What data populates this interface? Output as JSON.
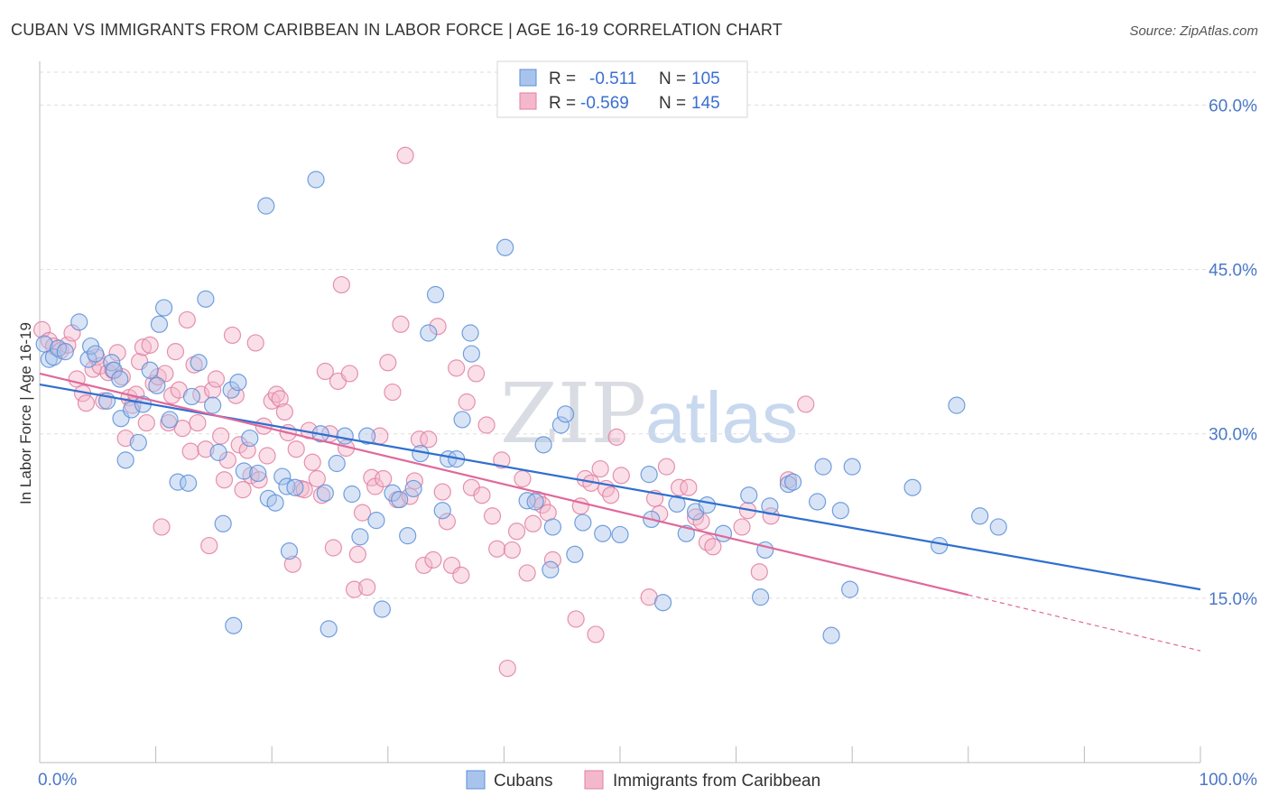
{
  "title": "CUBAN VS IMMIGRANTS FROM CARIBBEAN IN LABOR FORCE | AGE 16-19 CORRELATION CHART",
  "source": "Source: ZipAtlas.com",
  "watermark": {
    "zip": "ZIP",
    "atlas": "atlas"
  },
  "colors": {
    "blue_fill": "#a9c4ec",
    "blue_stroke": "#5b8fd8",
    "blue_line": "#2f6fd0",
    "pink_fill": "#f4b8cc",
    "pink_stroke": "#e07fa0",
    "pink_line": "#e0689a",
    "grid": "#dddddd",
    "tick_text": "#4a78c8"
  },
  "legend": {
    "rows": [
      {
        "r_label": "R =",
        "r_value": "-0.511",
        "n_label": "N =",
        "n_value": "105"
      },
      {
        "r_label": "R =",
        "r_value": "-0.569",
        "n_label": "N =",
        "n_value": "145"
      }
    ]
  },
  "bottom_legend": [
    "Cubans",
    "Immigrants from Caribbean"
  ],
  "chart_data": {
    "type": "scatter",
    "ylabel": "In Labor Force | Age 16-19",
    "xlim": [
      0,
      100
    ],
    "ylim": [
      0,
      63
    ],
    "x_tick_labels": [
      "0.0%",
      "100.0%"
    ],
    "y_ticks": [
      15,
      30,
      45,
      60
    ],
    "y_tick_labels": [
      "15.0%",
      "30.0%",
      "45.0%",
      "60.0%"
    ],
    "grid": true,
    "legend_position": "top-center",
    "series": [
      {
        "name": "Cubans",
        "trend": {
          "x": [
            0,
            100
          ],
          "y": [
            34.5,
            15.8
          ]
        },
        "points": [
          [
            0.4,
            38.2
          ],
          [
            0.8,
            36.8
          ],
          [
            1.2,
            37.0
          ],
          [
            1.6,
            37.8
          ],
          [
            2.2,
            37.5
          ],
          [
            3.4,
            40.2
          ],
          [
            4.2,
            36.8
          ],
          [
            4.4,
            38.0
          ],
          [
            4.8,
            37.3
          ],
          [
            6.2,
            36.5
          ],
          [
            5.8,
            33.0
          ],
          [
            6.4,
            35.8
          ],
          [
            6.9,
            35.0
          ],
          [
            7.0,
            31.4
          ],
          [
            7.4,
            27.6
          ],
          [
            7.9,
            32.2
          ],
          [
            8.5,
            29.2
          ],
          [
            8.9,
            32.7
          ],
          [
            9.5,
            35.8
          ],
          [
            10.1,
            34.4
          ],
          [
            10.3,
            40.0
          ],
          [
            10.7,
            41.5
          ],
          [
            11.2,
            31.3
          ],
          [
            11.9,
            25.6
          ],
          [
            12.8,
            25.5
          ],
          [
            13.1,
            33.4
          ],
          [
            13.7,
            36.5
          ],
          [
            14.3,
            42.3
          ],
          [
            14.9,
            32.6
          ],
          [
            15.4,
            28.3
          ],
          [
            15.8,
            21.8
          ],
          [
            16.5,
            34.0
          ],
          [
            16.7,
            12.5
          ],
          [
            17.1,
            34.7
          ],
          [
            17.6,
            26.6
          ],
          [
            18.1,
            29.6
          ],
          [
            18.8,
            26.4
          ],
          [
            19.5,
            50.8
          ],
          [
            19.7,
            24.1
          ],
          [
            20.3,
            23.7
          ],
          [
            20.9,
            26.1
          ],
          [
            21.3,
            25.2
          ],
          [
            21.5,
            19.3
          ],
          [
            22.0,
            25.1
          ],
          [
            23.8,
            53.2
          ],
          [
            24.2,
            30.0
          ],
          [
            24.6,
            24.6
          ],
          [
            24.9,
            12.2
          ],
          [
            25.6,
            27.3
          ],
          [
            26.3,
            29.8
          ],
          [
            26.9,
            24.5
          ],
          [
            27.6,
            20.6
          ],
          [
            28.2,
            29.8
          ],
          [
            29.0,
            22.1
          ],
          [
            29.5,
            14.0
          ],
          [
            30.4,
            24.6
          ],
          [
            31.0,
            24.0
          ],
          [
            31.7,
            20.7
          ],
          [
            32.2,
            25.0
          ],
          [
            32.8,
            28.2
          ],
          [
            33.5,
            39.2
          ],
          [
            34.1,
            42.7
          ],
          [
            34.7,
            23.0
          ],
          [
            35.2,
            27.7
          ],
          [
            35.9,
            27.7
          ],
          [
            36.4,
            31.3
          ],
          [
            37.1,
            39.2
          ],
          [
            37.2,
            37.3
          ],
          [
            40.1,
            47.0
          ],
          [
            42.0,
            23.9
          ],
          [
            42.7,
            23.8
          ],
          [
            43.4,
            29.0
          ],
          [
            44.0,
            17.6
          ],
          [
            44.2,
            21.5
          ],
          [
            44.9,
            30.8
          ],
          [
            45.3,
            31.8
          ],
          [
            46.1,
            19.0
          ],
          [
            46.8,
            21.9
          ],
          [
            48.5,
            20.9
          ],
          [
            50.0,
            20.8
          ],
          [
            52.5,
            26.3
          ],
          [
            52.7,
            22.2
          ],
          [
            53.7,
            14.6
          ],
          [
            54.9,
            23.6
          ],
          [
            55.7,
            20.9
          ],
          [
            56.5,
            22.9
          ],
          [
            57.5,
            23.5
          ],
          [
            58.9,
            20.9
          ],
          [
            61.1,
            24.4
          ],
          [
            62.1,
            15.1
          ],
          [
            62.5,
            19.4
          ],
          [
            62.9,
            23.4
          ],
          [
            64.5,
            25.4
          ],
          [
            64.9,
            25.6
          ],
          [
            67.0,
            23.8
          ],
          [
            67.5,
            27.0
          ],
          [
            68.2,
            11.6
          ],
          [
            69.0,
            23.0
          ],
          [
            69.8,
            15.8
          ],
          [
            70.0,
            27.0
          ],
          [
            75.2,
            25.1
          ],
          [
            79.0,
            32.6
          ],
          [
            81.0,
            22.5
          ],
          [
            82.6,
            21.5
          ],
          [
            77.5,
            19.8
          ]
        ]
      },
      {
        "name": "Immigrants from Caribbean",
        "trend": {
          "x": [
            0,
            80
          ],
          "y": [
            35.5,
            15.3
          ]
        },
        "dashed_extension": {
          "x": [
            80,
            100
          ],
          "y": [
            15.3,
            10.2
          ]
        },
        "points": [
          [
            0.2,
            39.5
          ],
          [
            0.8,
            38.5
          ],
          [
            1.2,
            38.0
          ],
          [
            1.8,
            37.6
          ],
          [
            2.4,
            38.1
          ],
          [
            2.8,
            39.2
          ],
          [
            3.2,
            35.0
          ],
          [
            3.7,
            33.7
          ],
          [
            4.0,
            32.8
          ],
          [
            4.6,
            35.9
          ],
          [
            4.9,
            37.0
          ],
          [
            5.2,
            36.2
          ],
          [
            5.5,
            33.0
          ],
          [
            5.9,
            35.6
          ],
          [
            6.3,
            35.8
          ],
          [
            6.7,
            37.4
          ],
          [
            7.1,
            35.2
          ],
          [
            7.4,
            29.6
          ],
          [
            7.7,
            33.3
          ],
          [
            8.0,
            32.6
          ],
          [
            8.3,
            33.6
          ],
          [
            8.6,
            36.6
          ],
          [
            8.9,
            37.9
          ],
          [
            9.2,
            31.0
          ],
          [
            9.5,
            38.1
          ],
          [
            9.8,
            34.6
          ],
          [
            10.2,
            35.2
          ],
          [
            10.5,
            21.5
          ],
          [
            10.8,
            35.5
          ],
          [
            11.1,
            31.0
          ],
          [
            11.4,
            33.5
          ],
          [
            11.7,
            37.5
          ],
          [
            12.0,
            34.0
          ],
          [
            12.3,
            30.5
          ],
          [
            12.7,
            40.4
          ],
          [
            13.0,
            28.4
          ],
          [
            13.3,
            36.3
          ],
          [
            13.6,
            31.0
          ],
          [
            13.9,
            33.6
          ],
          [
            14.3,
            28.6
          ],
          [
            14.6,
            19.8
          ],
          [
            14.9,
            34.0
          ],
          [
            15.2,
            35.0
          ],
          [
            15.6,
            29.8
          ],
          [
            15.9,
            25.8
          ],
          [
            16.2,
            27.6
          ],
          [
            16.6,
            39.0
          ],
          [
            16.9,
            33.5
          ],
          [
            17.2,
            29.0
          ],
          [
            17.5,
            24.9
          ],
          [
            17.9,
            28.5
          ],
          [
            18.2,
            26.2
          ],
          [
            18.6,
            38.3
          ],
          [
            18.9,
            25.8
          ],
          [
            19.3,
            30.7
          ],
          [
            19.6,
            28.0
          ],
          [
            20.0,
            33.0
          ],
          [
            20.4,
            33.6
          ],
          [
            20.7,
            33.2
          ],
          [
            21.1,
            32.0
          ],
          [
            21.4,
            30.1
          ],
          [
            21.8,
            18.1
          ],
          [
            22.1,
            28.6
          ],
          [
            22.5,
            25.0
          ],
          [
            22.8,
            24.9
          ],
          [
            23.2,
            30.3
          ],
          [
            23.5,
            27.4
          ],
          [
            23.9,
            25.9
          ],
          [
            24.3,
            24.4
          ],
          [
            24.6,
            35.7
          ],
          [
            25.0,
            30.0
          ],
          [
            25.3,
            19.6
          ],
          [
            25.7,
            34.8
          ],
          [
            26.0,
            43.6
          ],
          [
            26.4,
            28.7
          ],
          [
            26.7,
            35.5
          ],
          [
            27.1,
            15.8
          ],
          [
            27.4,
            19.0
          ],
          [
            27.8,
            22.8
          ],
          [
            28.2,
            16.0
          ],
          [
            28.6,
            26.0
          ],
          [
            28.9,
            25.2
          ],
          [
            29.3,
            29.8
          ],
          [
            29.6,
            25.9
          ],
          [
            30.0,
            36.5
          ],
          [
            30.4,
            33.8
          ],
          [
            30.8,
            24.0
          ],
          [
            31.1,
            40.0
          ],
          [
            31.5,
            55.4
          ],
          [
            31.9,
            24.3
          ],
          [
            32.3,
            25.7
          ],
          [
            32.7,
            29.5
          ],
          [
            33.1,
            18.0
          ],
          [
            33.5,
            29.5
          ],
          [
            33.9,
            18.5
          ],
          [
            34.3,
            39.8
          ],
          [
            34.7,
            24.7
          ],
          [
            35.1,
            22.0
          ],
          [
            35.5,
            18.0
          ],
          [
            35.9,
            36.0
          ],
          [
            36.3,
            17.1
          ],
          [
            36.8,
            32.9
          ],
          [
            37.2,
            25.1
          ],
          [
            37.6,
            35.5
          ],
          [
            38.1,
            24.4
          ],
          [
            38.5,
            30.8
          ],
          [
            39.0,
            22.5
          ],
          [
            39.4,
            19.5
          ],
          [
            39.8,
            27.6
          ],
          [
            40.3,
            8.6
          ],
          [
            40.7,
            19.4
          ],
          [
            41.1,
            21.1
          ],
          [
            41.6,
            25.9
          ],
          [
            42.0,
            17.3
          ],
          [
            42.5,
            21.8
          ],
          [
            42.9,
            24.0
          ],
          [
            43.3,
            23.5
          ],
          [
            43.8,
            22.8
          ],
          [
            44.2,
            18.5
          ],
          [
            46.2,
            13.1
          ],
          [
            46.6,
            23.4
          ],
          [
            47.0,
            25.9
          ],
          [
            47.5,
            25.5
          ],
          [
            47.9,
            11.7
          ],
          [
            48.3,
            26.8
          ],
          [
            48.8,
            25.0
          ],
          [
            49.2,
            24.4
          ],
          [
            49.7,
            29.7
          ],
          [
            50.1,
            26.2
          ],
          [
            52.5,
            15.1
          ],
          [
            53.0,
            24.1
          ],
          [
            53.4,
            22.7
          ],
          [
            54.0,
            27.0
          ],
          [
            55.1,
            25.1
          ],
          [
            55.9,
            25.1
          ],
          [
            56.5,
            22.4
          ],
          [
            57.0,
            22.0
          ],
          [
            57.5,
            20.1
          ],
          [
            58.0,
            19.7
          ],
          [
            60.5,
            21.5
          ],
          [
            61.0,
            23.0
          ],
          [
            62.0,
            17.4
          ],
          [
            63.0,
            22.5
          ],
          [
            64.5,
            25.8
          ],
          [
            66.0,
            32.7
          ]
        ]
      }
    ]
  }
}
